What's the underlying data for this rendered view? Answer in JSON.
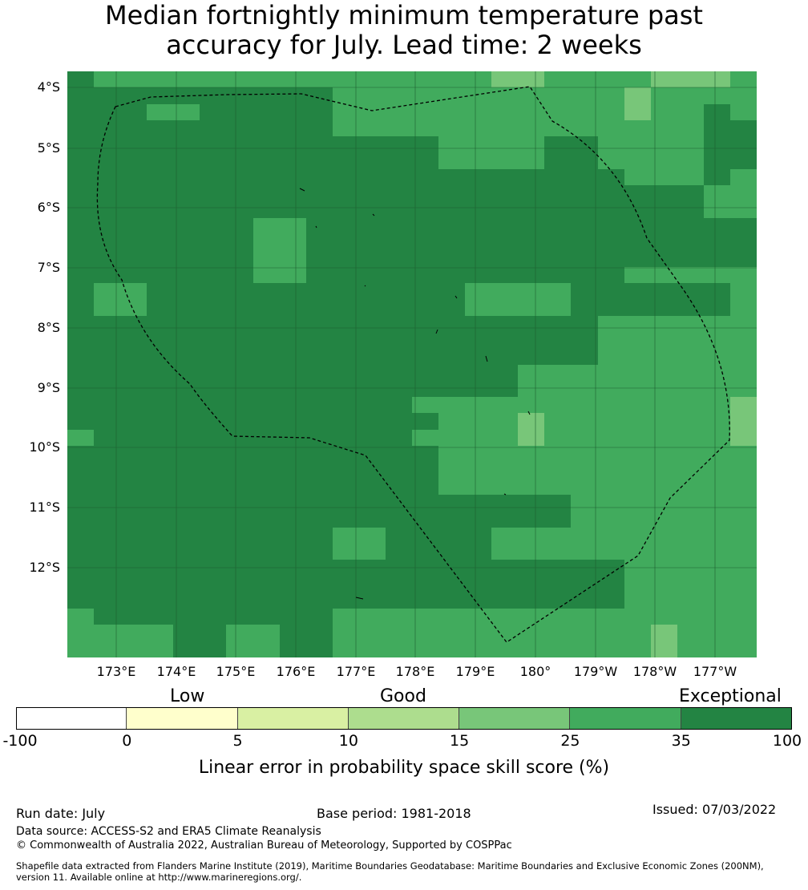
{
  "title": {
    "line1": "Median fortnightly minimum temperature past",
    "line2": "accuracy for July. Lead time: 2 weeks"
  },
  "map": {
    "lat_labels": [
      "4°S",
      "5°S",
      "6°S",
      "7°S",
      "8°S",
      "9°S",
      "10°S",
      "11°S",
      "12°S"
    ],
    "lon_labels": [
      "173°E",
      "174°E",
      "175°E",
      "176°E",
      "177°E",
      "178°E",
      "179°E",
      "180°",
      "179°W",
      "178°W",
      "177°W"
    ],
    "palette": {
      "d": "#238443",
      "m": "#41ab5d",
      "l": "#78c679"
    },
    "grid_rows": [
      "dmmmmmmmmmmmmmmmllmmmmlllm",
      "ddddddddddmmmmmmmmmmmlmmmm",
      "dddmmdddddmmmmmmmmmmmlmmdm",
      "ddddddddddmmmmmmmmmmmmmmdd",
      "ddddddddddddddmmmmddmmmmdd",
      "ddddddddddddddmmmmddmmmmdd",
      "dddddddddddddddddddddmmmdm",
      "ddddddddddddddddddddddddmm",
      "ddddddddddddddddddddddddmm",
      "dddddddmmddddddddddddddddd",
      "dddddddmmddddddddddddddddd",
      "dddddddmmddddddddddddddddd",
      "dddddddmmddddddddddddmmmmm",
      "dmmddddddddddddmmmmddddddm",
      "dmmddddddddddddmmmmddddddm",
      "ddddddddddddddddddddmmmmmm",
      "ddddddddddddddddddddmmmmmm",
      "ddddddddddddddddddddmmmmmm",
      "dddddddddddddddddmmmmmmmmm",
      "dddddddddddddddddmmmmmmmmm",
      "dddddddddddddmmmmmmmmmmmml",
      "ddddddddddddddmmmlmmmmmmml",
      "mddddddddddddmmmmlmmmmmmml",
      "ddddddddddddddmmmmmmmmmmmm",
      "ddddddddddddddmmmmmmmmmmmm",
      "ddddddddddddddmmmmmmmmmmmm",
      "dddddddddddddddddddmmmmmmm",
      "dddddddddddddddddddmmmmmmm",
      "ddddddddddmmddddmmmmmmmmmm",
      "ddddddddddmmddddmmmmmmmmmm",
      "dddddddddddddddddddddmmmmm",
      "dddddddddddddddddddddmmmmm",
      "dddddddddddddddddddddmmmmm",
      "mdddddddddmmmmmmmmmmmmmmmm",
      "mmmmddmmddmmmmmmmmmmmmlmmm",
      "mmmmddmmddmmmmmmmmmmmmlmmm"
    ]
  },
  "legend": {
    "categories": [
      "Low",
      "Good",
      "Exceptional"
    ],
    "ticks": [
      "-100",
      "0",
      "5",
      "10",
      "15",
      "25",
      "35",
      "100"
    ],
    "colors": [
      "#ffffff",
      "#ffffcc",
      "#d9f0a3",
      "#addd8e",
      "#78c679",
      "#41ab5d",
      "#238443"
    ],
    "label": "Linear error in probability space skill score (%)"
  },
  "footer": {
    "run_date": "Run date: July",
    "base_period": "Base period: 1981-2018",
    "issued": "Issued: 07/03/2022",
    "data_source": "Data source: ACCESS-S2 and ERA5 Climate Reanalysis",
    "copyright": "© Commonwealth of Australia 2022, Australian Bureau of Meteorology, Supported by COSPPac",
    "shapefile_line1": "Shapefile data extracted from Flanders Marine Institute (2019), Maritime Boundaries Geodatabase: Maritime Boundaries and Exclusive Economic Zones (200NM),",
    "shapefile_line2": "version 11. Available online at http://www.marineregions.org/."
  }
}
